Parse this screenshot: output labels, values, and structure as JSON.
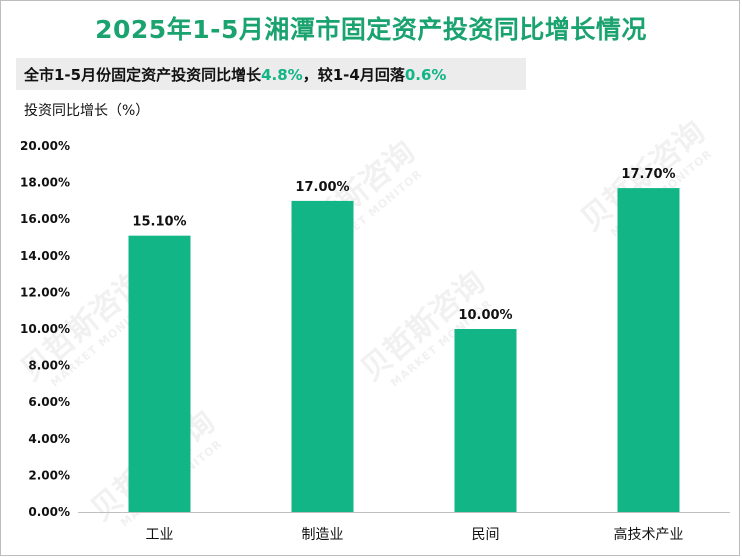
{
  "title": "2025年1-5月湘潭市固定资产投资同比增长情况",
  "subtitle": {
    "prefix": "全市1-5月份固定资产投资同比增长",
    "value1": "4.8%",
    "middle": "，较1-4月回落",
    "value2": "0.6%"
  },
  "watermark": {
    "name": "贝哲斯咨询",
    "en": "MARKET MONITOR"
  },
  "colors": {
    "title": "#1aa36f",
    "bar": "#12b585",
    "highlight": "#12b585"
  },
  "chart_data": {
    "type": "bar",
    "title": "2025年1-5月湘潭市固定资产投资同比增长情况",
    "ylabel": "投资同比增长（%）",
    "xlabel": "",
    "categories": [
      "工业",
      "制造业",
      "民间",
      "高技术产业"
    ],
    "values": [
      15.1,
      17.0,
      10.0,
      17.7
    ],
    "value_labels": [
      "15.10%",
      "17.00%",
      "10.00%",
      "17.70%"
    ],
    "ylim": [
      0,
      20
    ],
    "yticks": [
      0,
      2,
      4,
      6,
      8,
      10,
      12,
      14,
      16,
      18,
      20
    ],
    "ytick_labels": [
      "0.00%",
      "2.00%",
      "4.00%",
      "6.00%",
      "8.00%",
      "10.00%",
      "12.00%",
      "14.00%",
      "16.00%",
      "18.00%",
      "20.00%"
    ],
    "grid": false,
    "legend": "none"
  }
}
